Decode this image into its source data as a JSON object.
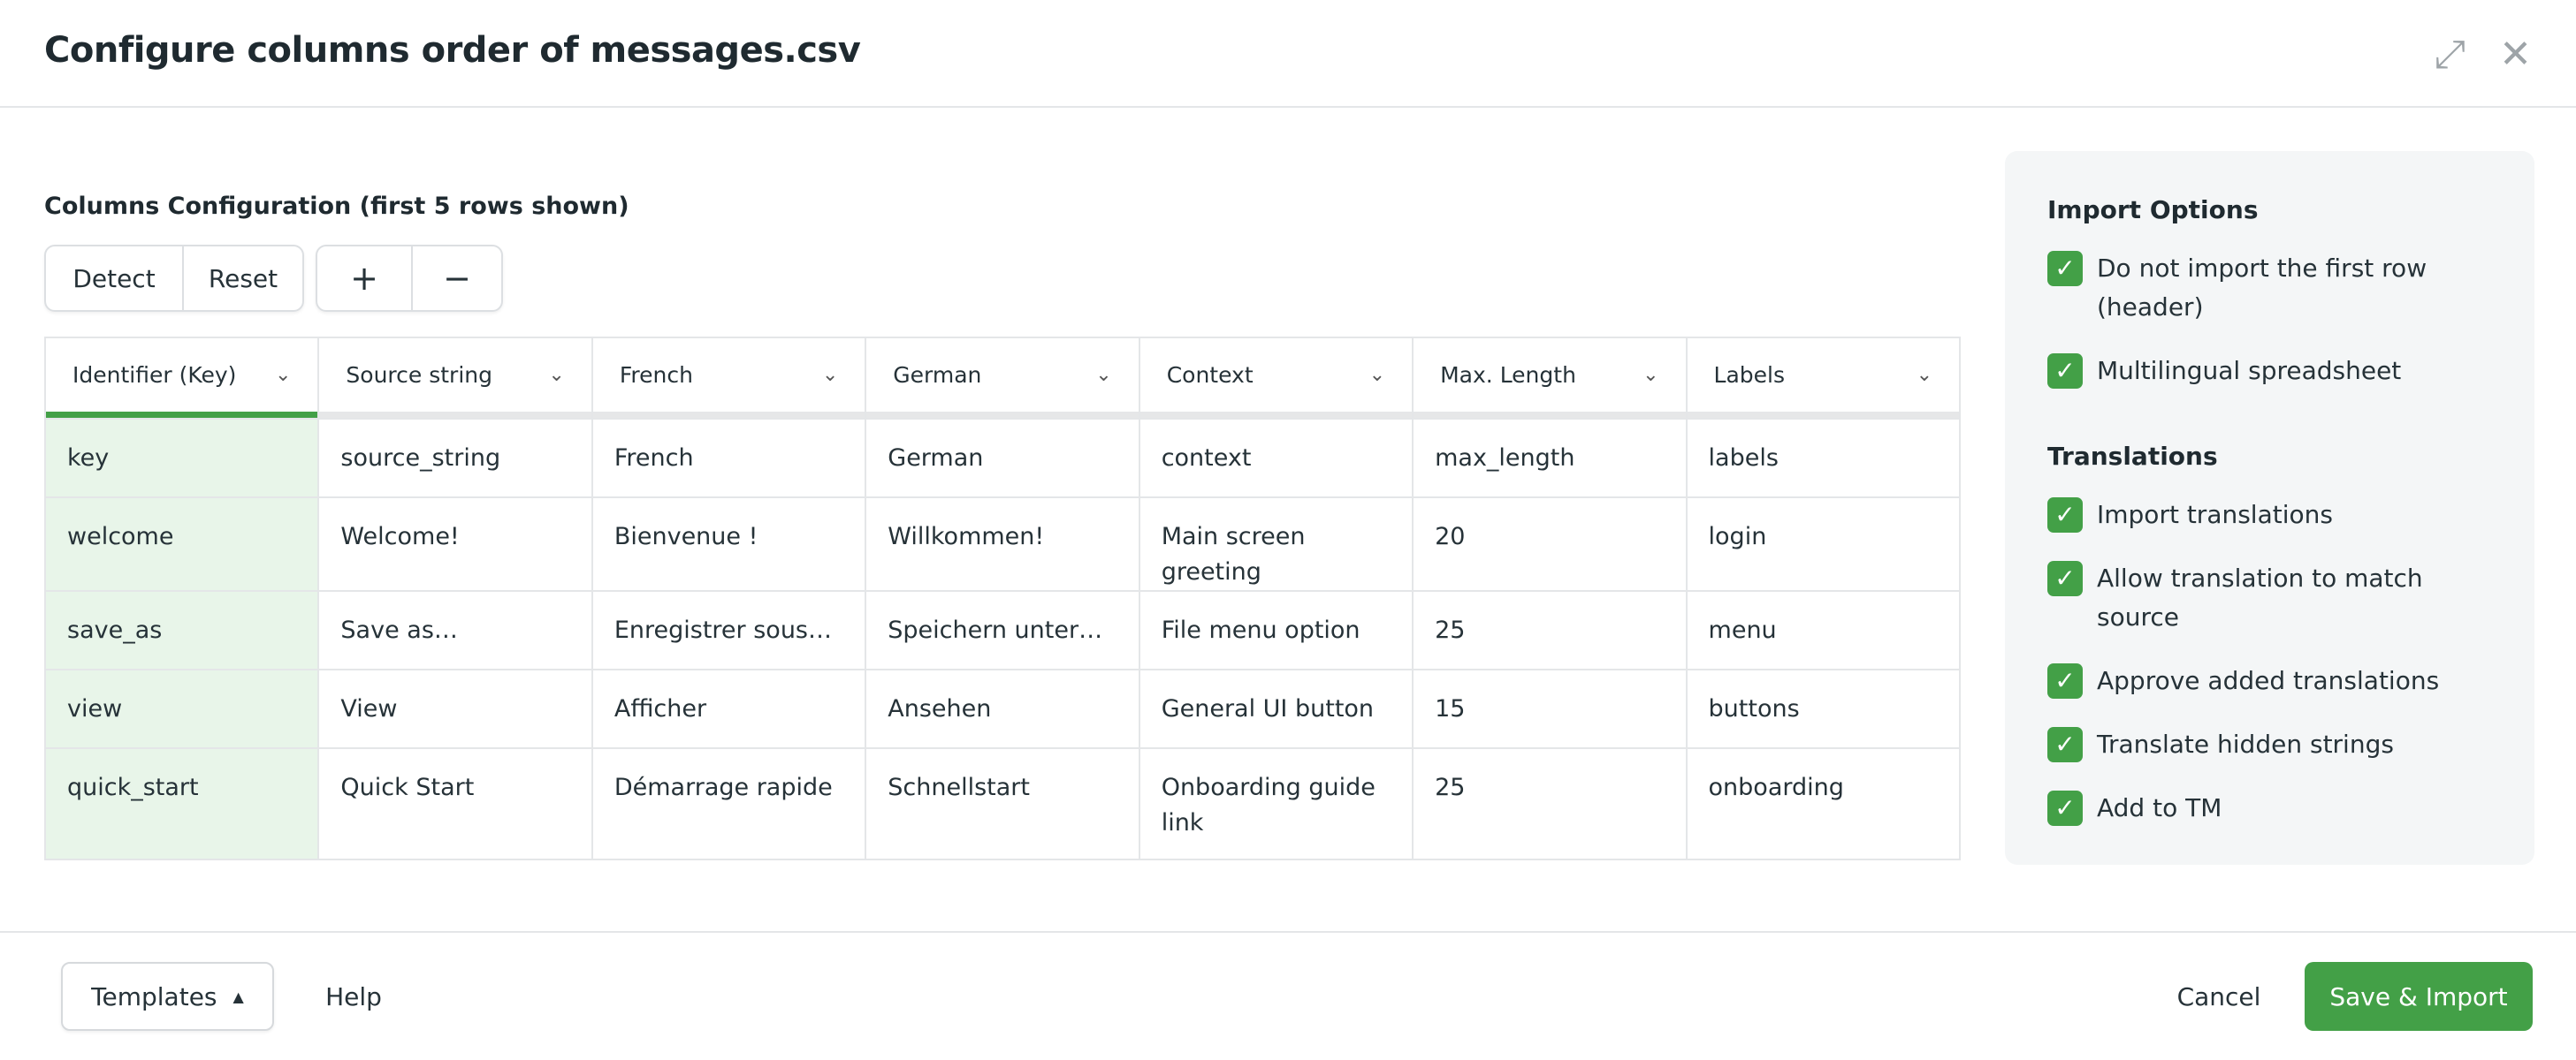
{
  "header": {
    "title": "Configure columns order of messages.csv",
    "expand_icon": "expand-arrows-icon",
    "close_icon": "close-icon"
  },
  "config": {
    "title": "Columns Configuration (first 5 rows shown)",
    "detect_label": "Detect",
    "reset_label": "Reset",
    "add_label": "+",
    "remove_label": "−"
  },
  "table": {
    "headers": [
      "Identifier (Key)",
      "Source string",
      "French",
      "German",
      "Context",
      "Max. Length",
      "Labels"
    ],
    "rows": [
      [
        "key",
        "source_string",
        "French",
        "German",
        "context",
        "max_length",
        "labels"
      ],
      [
        "welcome",
        "Welcome!",
        "Bienvenue !",
        "Willkommen!",
        "Main screen greeting",
        "20",
        "login"
      ],
      [
        "save_as",
        "Save as…",
        "Enregistrer sous…",
        "Speichern unter…",
        "File menu option",
        "25",
        "menu"
      ],
      [
        "view",
        "View",
        "Afficher",
        "Ansehen",
        "General UI button",
        "15",
        "buttons"
      ],
      [
        "quick_start",
        "Quick Start",
        "Démarrage rapide",
        "Schnellstart",
        "Onboarding guide link",
        "25",
        "onboarding"
      ]
    ]
  },
  "options": {
    "import_title": "Import Options",
    "import": [
      {
        "label": "Do not import the first row (header)",
        "checked": true
      },
      {
        "label": "Multilingual spreadsheet",
        "checked": true
      }
    ],
    "translations_title": "Translations",
    "translations": [
      {
        "label": "Import translations",
        "checked": true
      },
      {
        "label": "Allow translation to match source",
        "checked": true
      },
      {
        "label": "Approve added translations",
        "checked": true
      },
      {
        "label": "Translate hidden strings",
        "checked": true
      },
      {
        "label": "Add to TM",
        "checked": true
      }
    ]
  },
  "footer": {
    "templates_label": "Templates",
    "help_label": "Help",
    "cancel_label": "Cancel",
    "save_label": "Save & Import"
  },
  "colors": {
    "accent": "#43a047",
    "key_column_bg": "#e8f5e9",
    "panel_bg": "#f4f6f7"
  }
}
